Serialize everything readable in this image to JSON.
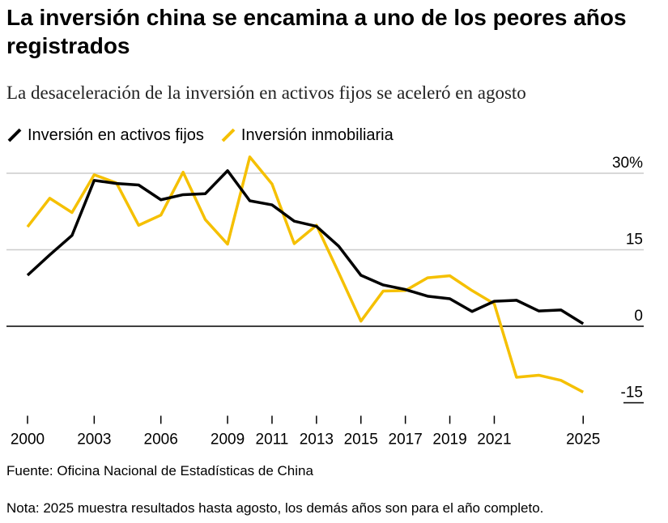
{
  "title": "La inversión china se encamina a uno de los peores años registrados",
  "subtitle": "La desaceleración de la inversión en activos fijos se aceleró en agosto",
  "source": "Fuente: Oficina Nacional de Estadísticas de China",
  "note": "Nota: 2025 muestra resultados hasta agosto, los demás años son para el año completo.",
  "chart_data": {
    "type": "line",
    "title": "La inversión china se encamina a uno de los peores años registrados",
    "subtitle": "La desaceleración de la inversión en activos fijos se aceleró en agosto",
    "x": [
      2000,
      2001,
      2002,
      2003,
      2004,
      2005,
      2006,
      2007,
      2008,
      2009,
      2010,
      2011,
      2012,
      2013,
      2014,
      2015,
      2016,
      2017,
      2018,
      2019,
      2020,
      2021,
      2022,
      2023,
      2024,
      2025
    ],
    "series": [
      {
        "name": "Inversión en activos fijos",
        "color": "#000000",
        "values": [
          10,
          14,
          17.8,
          28.6,
          28,
          27.7,
          24.8,
          25.8,
          26,
          30.5,
          24.6,
          23.8,
          20.6,
          19.6,
          15.7,
          10,
          8.1,
          7.2,
          5.9,
          5.4,
          2.9,
          4.9,
          5.1,
          3,
          3.2,
          0.5
        ]
      },
      {
        "name": "Inversión inmobiliaria",
        "color": "#F5C000",
        "values": [
          19.5,
          25.1,
          22.3,
          29.7,
          28.1,
          19.8,
          21.8,
          30.2,
          20.9,
          16.1,
          33.2,
          27.9,
          16.2,
          19.8,
          10.5,
          1,
          6.9,
          7,
          9.5,
          9.9,
          7,
          4.4,
          -10,
          -9.6,
          -10.6,
          -12.9
        ]
      }
    ],
    "xticks": [
      "2000",
      "2003",
      "2006",
      "2009",
      "2011",
      "2013",
      "2015",
      "2017",
      "2019",
      "2021",
      "2025"
    ],
    "yticks": [
      "30%",
      "15",
      "0",
      "-15"
    ],
    "ylim": [
      -15,
      30
    ],
    "grid": true,
    "legend_position": "top-left"
  }
}
